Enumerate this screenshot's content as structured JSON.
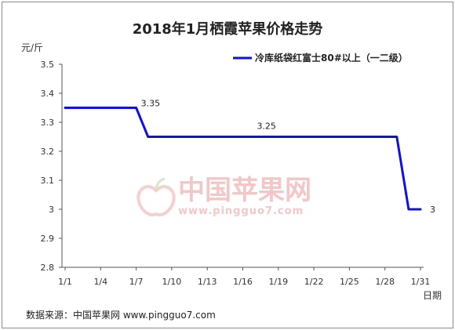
{
  "chart_data": {
    "type": "line",
    "title": "2018年1月栖霞苹果价格走势",
    "ylabel": "元/斤",
    "xlabel": "日期",
    "ylim": [
      2.8,
      3.5
    ],
    "y_ticks": [
      "3.5",
      "3.4",
      "3.3",
      "3.2",
      "3.1",
      "3",
      "2.9",
      "2.8"
    ],
    "x_ticks": [
      "1/1",
      "1/4",
      "1/7",
      "1/10",
      "1/13",
      "1/16",
      "1/19",
      "1/22",
      "1/25",
      "1/28",
      "1/31"
    ],
    "grid": false,
    "legend_position": "top-right",
    "series": [
      {
        "name": "冷库纸袋红富士80#以上（一二级）",
        "color": "#1010e6",
        "x": [
          1,
          2,
          3,
          4,
          5,
          6,
          7,
          8,
          9,
          10,
          11,
          12,
          13,
          14,
          15,
          16,
          17,
          18,
          19,
          20,
          21,
          22,
          23,
          24,
          25,
          26,
          27,
          28,
          29,
          30,
          31
        ],
        "values": [
          3.35,
          3.35,
          3.35,
          3.35,
          3.35,
          3.35,
          3.35,
          3.25,
          3.25,
          3.25,
          3.25,
          3.25,
          3.25,
          3.25,
          3.25,
          3.25,
          3.25,
          3.25,
          3.25,
          3.25,
          3.25,
          3.25,
          3.25,
          3.25,
          3.25,
          3.25,
          3.25,
          3.25,
          3.25,
          3.0,
          3.0
        ]
      }
    ],
    "annotations": [
      {
        "text": "3.35",
        "x": 7,
        "y": 3.35
      },
      {
        "text": "3.25",
        "x": 18,
        "y": 3.25
      },
      {
        "text": "3",
        "x": 31,
        "y": 3.0
      }
    ]
  },
  "watermark": {
    "name": "中国苹果网",
    "url": "www.pingguo7.com"
  },
  "source": "数据来源：中国苹果网 www.pingguo7.com"
}
